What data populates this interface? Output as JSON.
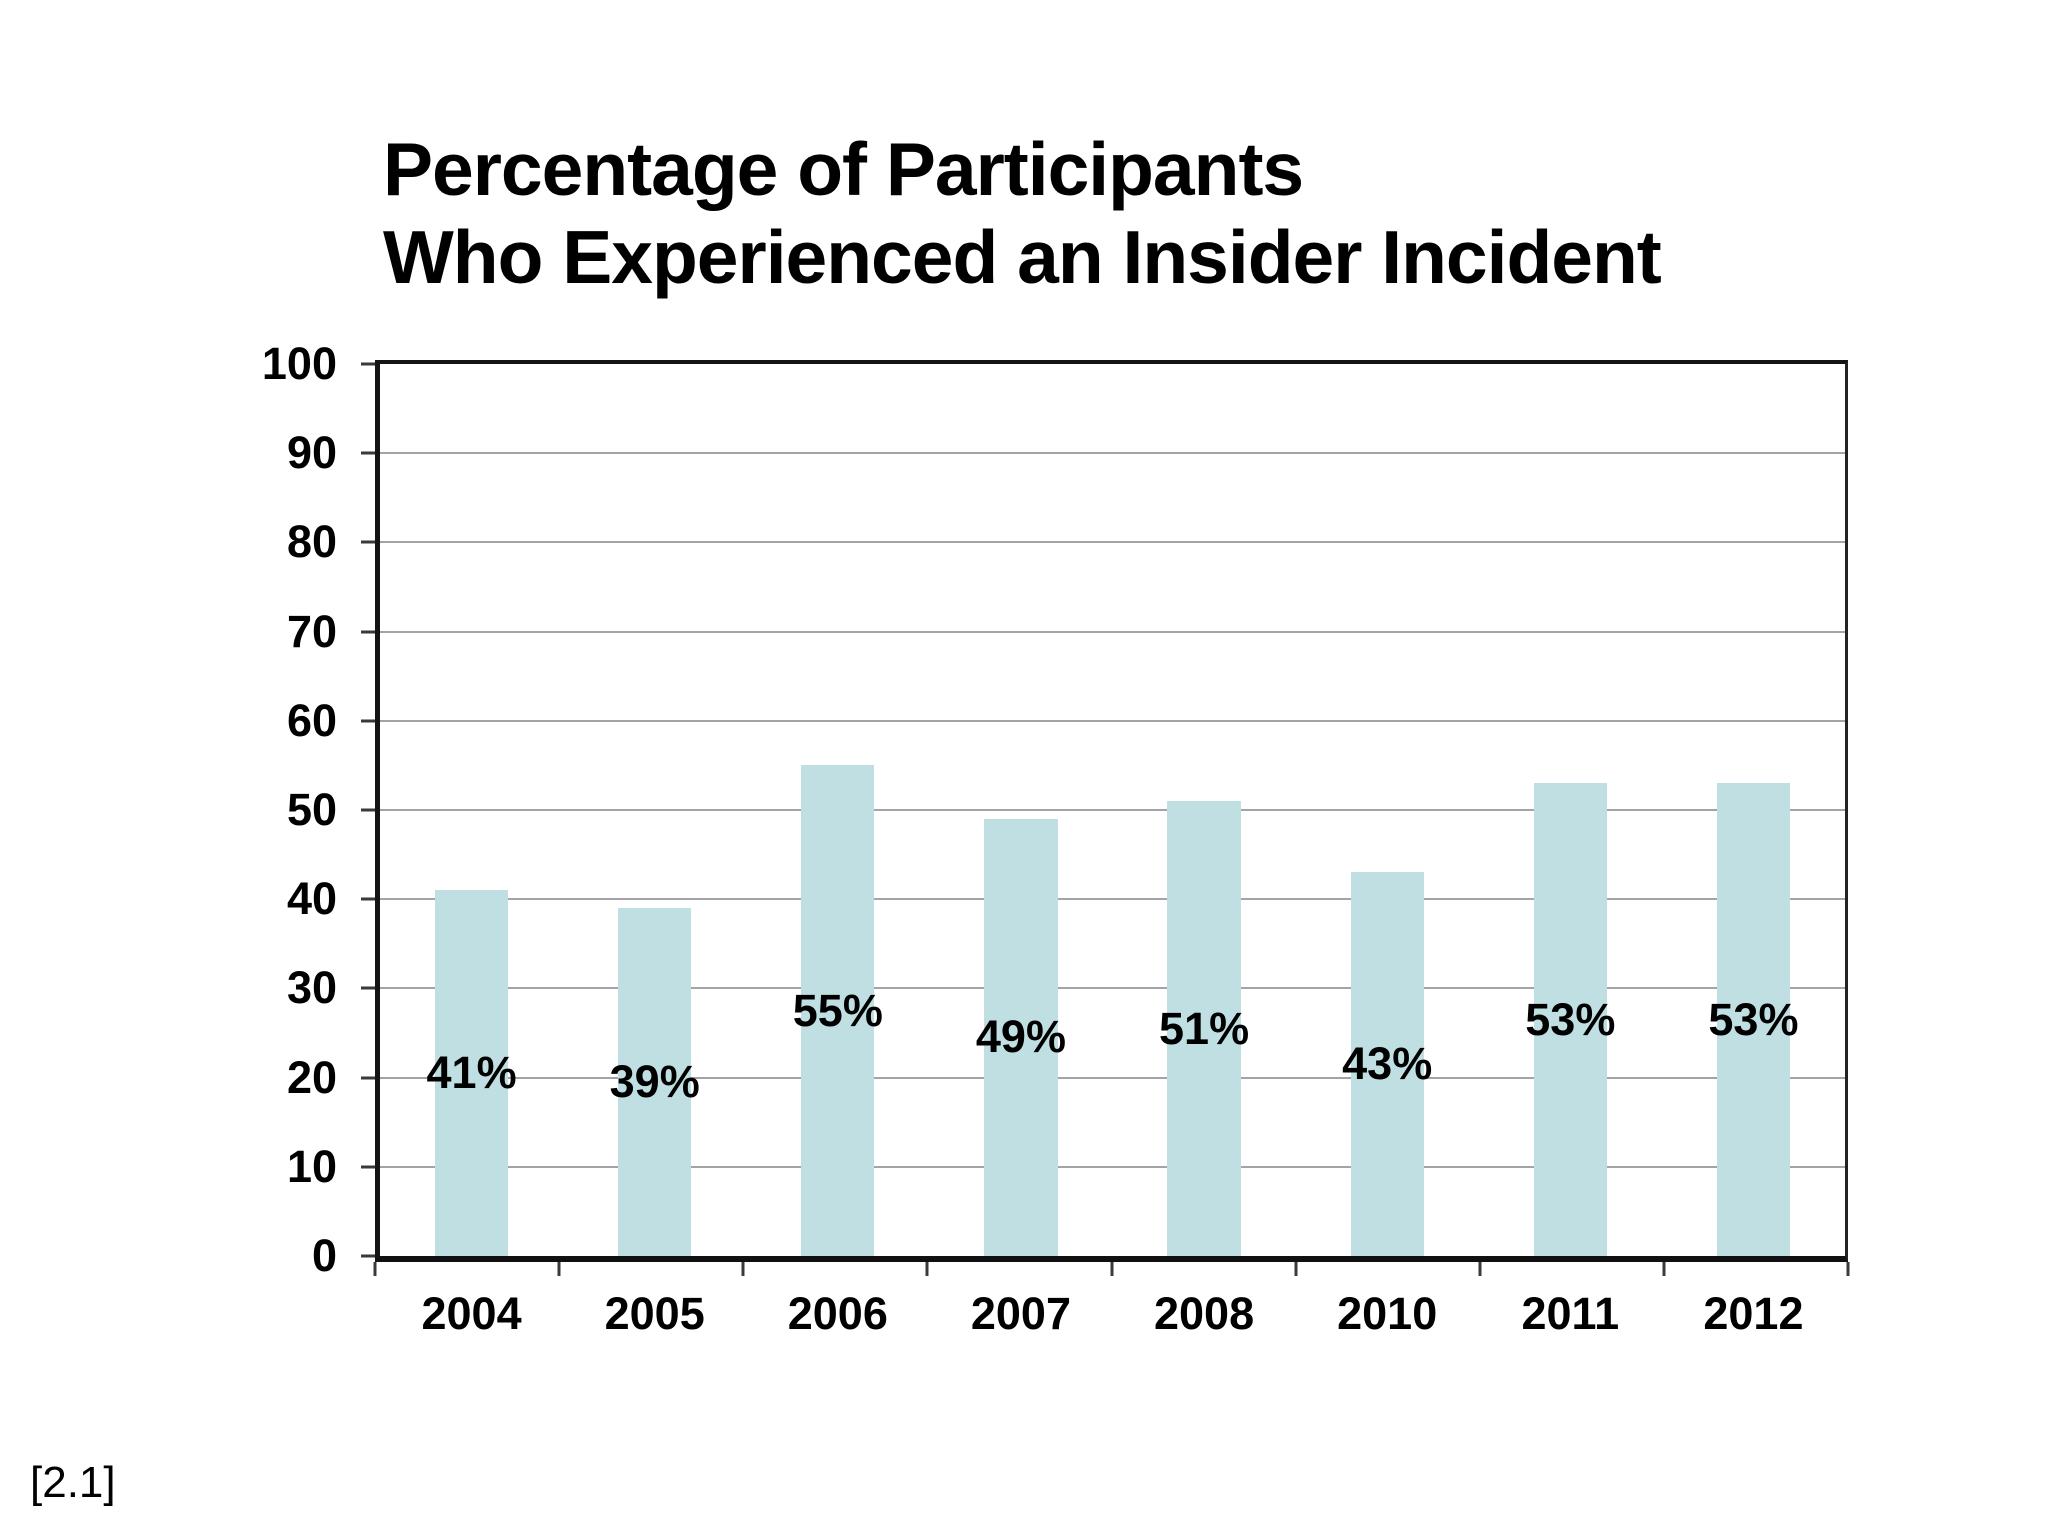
{
  "page": {
    "background": "#ffffff"
  },
  "chart_data": {
    "type": "bar",
    "title": "Percentage of Participants\nWho Experienced an Insider Incident",
    "xlabel": "",
    "ylabel": "",
    "categories": [
      "2004",
      "2005",
      "2006",
      "2007",
      "2008",
      "2010",
      "2011",
      "2012"
    ],
    "values": [
      41,
      39,
      55,
      49,
      51,
      43,
      53,
      53
    ],
    "bar_labels": [
      "41%",
      "39%",
      "55%",
      "49%",
      "51%",
      "43%",
      "53%",
      "53%"
    ],
    "ylim": [
      0,
      100
    ],
    "yticks": [
      0,
      10,
      20,
      30,
      40,
      50,
      60,
      70,
      80,
      90,
      100
    ],
    "grid": "horizontal",
    "legend": "none",
    "bar_label_position": "center-of-bar",
    "colors": {
      "bar": "#bfdfe2",
      "gridline": "#a2a2a8",
      "axis": "#141414",
      "text": "#000000"
    }
  },
  "citation": "[2.1]"
}
